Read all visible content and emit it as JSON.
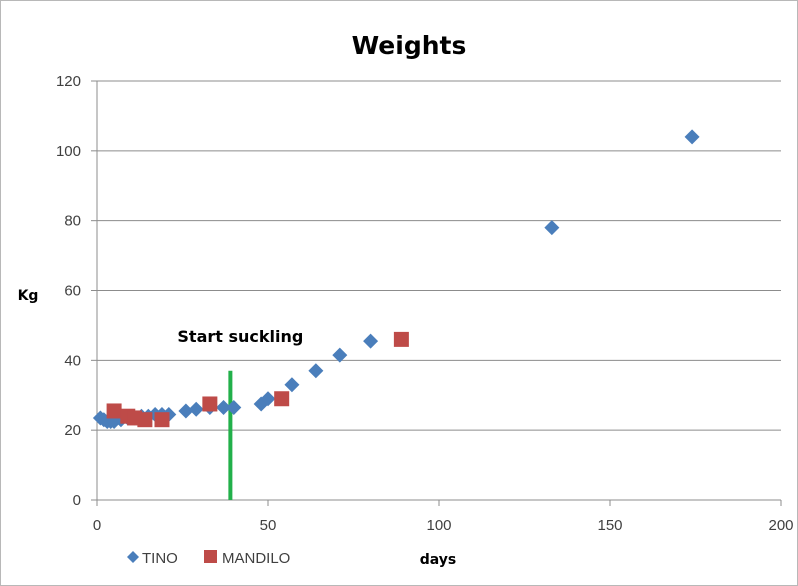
{
  "chart_data": {
    "type": "scatter",
    "title": "Weights",
    "xlabel": "days",
    "ylabel": "Kg",
    "xlim": [
      0,
      200
    ],
    "ylim": [
      0,
      120
    ],
    "x_ticks": [
      0,
      50,
      100,
      150,
      200
    ],
    "y_ticks": [
      0,
      20,
      40,
      60,
      80,
      100,
      120
    ],
    "grid": "horizontal",
    "legend_position": "bottom-left",
    "series": [
      {
        "name": "TINO",
        "marker": "diamond",
        "color": "#4a7ebb",
        "points": [
          [
            1,
            23.5
          ],
          [
            2,
            23
          ],
          [
            3,
            22.5
          ],
          [
            4,
            22.5
          ],
          [
            5,
            22.5
          ],
          [
            7,
            23
          ],
          [
            9,
            23.5
          ],
          [
            11,
            23.5
          ],
          [
            13,
            24
          ],
          [
            15,
            24
          ],
          [
            17,
            24.5
          ],
          [
            19,
            24.5
          ],
          [
            21,
            24.5
          ],
          [
            26,
            25.5
          ],
          [
            29,
            26
          ],
          [
            33,
            26.5
          ],
          [
            37,
            26.5
          ],
          [
            40,
            26.5
          ],
          [
            48,
            27.5
          ],
          [
            50,
            29
          ],
          [
            57,
            33
          ],
          [
            64,
            37
          ],
          [
            71,
            41.5
          ],
          [
            80,
            45.5
          ],
          [
            133,
            78
          ],
          [
            174,
            104
          ]
        ]
      },
      {
        "name": "MANDILO",
        "marker": "square",
        "color": "#be4b48",
        "points": [
          [
            5,
            25.5
          ],
          [
            9,
            24
          ],
          [
            11,
            23.5
          ],
          [
            14,
            23
          ],
          [
            19,
            23
          ],
          [
            33,
            27.5
          ],
          [
            54,
            29
          ],
          [
            89,
            46
          ]
        ]
      }
    ],
    "annotations": [
      {
        "text": "Start suckling",
        "x": 39,
        "type": "vertical-line",
        "color": "#22b04a",
        "y_range": [
          0,
          37
        ]
      }
    ]
  }
}
